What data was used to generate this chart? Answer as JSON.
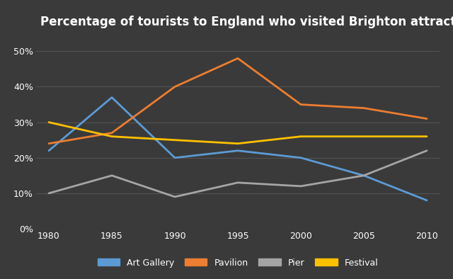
{
  "title": "Percentage of tourists to England who visited Brighton attractions",
  "years": [
    1980,
    1985,
    1990,
    1995,
    2000,
    2005,
    2010
  ],
  "series": {
    "Art Gallery": {
      "values": [
        22,
        37,
        20,
        22,
        20,
        15,
        8
      ],
      "color": "#5b9bd5"
    },
    "Pavilion": {
      "values": [
        24,
        27,
        40,
        48,
        35,
        34,
        31
      ],
      "color": "#ed7d31"
    },
    "Pier": {
      "values": [
        10,
        15,
        9,
        13,
        12,
        15,
        22
      ],
      "color": "#a5a5a5"
    },
    "Festival": {
      "values": [
        30,
        26,
        25,
        24,
        26,
        26,
        26
      ],
      "color": "#ffc000"
    }
  },
  "ylim": [
    0,
    55
  ],
  "yticks": [
    0,
    10,
    20,
    30,
    40,
    50
  ],
  "ytick_labels": [
    "0%",
    "10%",
    "20%",
    "30%",
    "40%",
    "50%"
  ],
  "background_color": "#3a3a3a",
  "plot_background_color": "#3a3a3a",
  "text_color": "#ffffff",
  "grid_color": "#555555",
  "title_fontsize": 12,
  "legend_fontsize": 9,
  "tick_fontsize": 9,
  "line_width": 2.0,
  "xlim_left": 1979,
  "xlim_right": 2011
}
